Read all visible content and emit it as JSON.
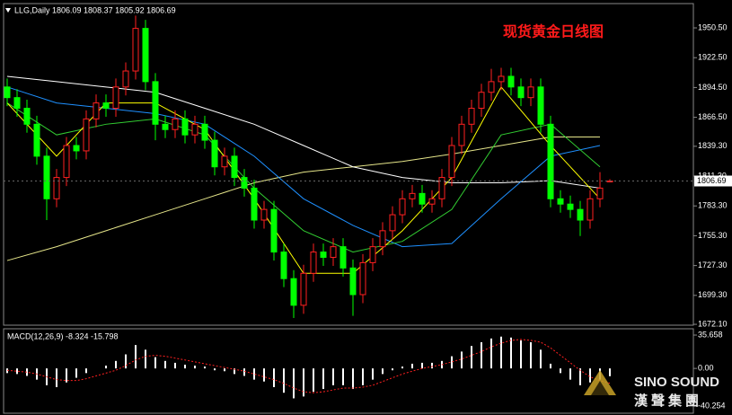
{
  "chart_data": [
    {
      "type": "candlestick",
      "subtitle": "LLG,Daily  1806.09 1808.37 1805.92 1806.69",
      "title": "现货黄金日线图",
      "up_color": "#ff2020",
      "down_color": "#00ff00",
      "open": [
        1895,
        1885,
        1875,
        1860,
        1830,
        1790,
        1810,
        1840,
        1835,
        1865,
        1880,
        1875,
        1895,
        1910,
        1950,
        1900,
        1860,
        1855,
        1865,
        1850,
        1860,
        1845,
        1820,
        1830,
        1810,
        1800,
        1770,
        1780,
        1740,
        1715,
        1690,
        1720,
        1740,
        1735,
        1745,
        1725,
        1700,
        1730,
        1745,
        1760,
        1775,
        1790,
        1795,
        1785,
        1790,
        1810,
        1840,
        1860,
        1875,
        1890,
        1900,
        1905,
        1895,
        1885,
        1895,
        1860,
        1790,
        1785,
        1780,
        1770,
        1790,
        1806.09
      ],
      "high": [
        1903,
        1893,
        1883,
        1868,
        1838,
        1818,
        1848,
        1848,
        1873,
        1888,
        1888,
        1903,
        1918,
        1962,
        1958,
        1908,
        1868,
        1873,
        1873,
        1868,
        1868,
        1853,
        1838,
        1838,
        1818,
        1808,
        1788,
        1788,
        1748,
        1723,
        1728,
        1748,
        1748,
        1753,
        1753,
        1733,
        1738,
        1753,
        1768,
        1783,
        1798,
        1803,
        1803,
        1798,
        1818,
        1848,
        1868,
        1883,
        1898,
        1912,
        1913,
        1913,
        1903,
        1903,
        1903,
        1868,
        1798,
        1793,
        1788,
        1798,
        1815,
        1808.37
      ],
      "low": [
        1877,
        1867,
        1852,
        1822,
        1770,
        1782,
        1802,
        1827,
        1827,
        1857,
        1867,
        1867,
        1887,
        1902,
        1892,
        1845,
        1847,
        1847,
        1842,
        1842,
        1837,
        1812,
        1812,
        1802,
        1792,
        1762,
        1762,
        1732,
        1707,
        1678,
        1682,
        1712,
        1727,
        1727,
        1717,
        1680,
        1692,
        1722,
        1737,
        1752,
        1767,
        1782,
        1777,
        1777,
        1782,
        1802,
        1832,
        1852,
        1867,
        1882,
        1892,
        1887,
        1877,
        1877,
        1852,
        1782,
        1777,
        1772,
        1755,
        1762,
        1782,
        1805.92
      ],
      "close": [
        1885,
        1875,
        1860,
        1830,
        1790,
        1810,
        1840,
        1835,
        1865,
        1880,
        1875,
        1895,
        1910,
        1950,
        1900,
        1860,
        1855,
        1865,
        1850,
        1860,
        1845,
        1820,
        1830,
        1810,
        1800,
        1770,
        1780,
        1740,
        1715,
        1690,
        1720,
        1740,
        1735,
        1745,
        1725,
        1700,
        1730,
        1745,
        1760,
        1775,
        1790,
        1795,
        1785,
        1790,
        1810,
        1840,
        1860,
        1875,
        1890,
        1900,
        1905,
        1895,
        1885,
        1895,
        1860,
        1790,
        1785,
        1780,
        1770,
        1790,
        1800,
        1806.69
      ],
      "ma_x": [
        0,
        5,
        10,
        15,
        20,
        25,
        30,
        35,
        40,
        45,
        50,
        55,
        60
      ],
      "moving_averages": [
        {
          "color": "#e6e68a",
          "values": [
            1732,
            1745,
            1760,
            1775,
            1790,
            1805,
            1815,
            1820,
            1825,
            1832,
            1840,
            1848,
            1848
          ]
        },
        {
          "color": "#ffffff",
          "values": [
            1905,
            1900,
            1895,
            1890,
            1875,
            1860,
            1840,
            1820,
            1810,
            1805,
            1805,
            1807,
            1800
          ]
        },
        {
          "color": "#1e90ff",
          "values": [
            1895,
            1880,
            1875,
            1870,
            1860,
            1830,
            1790,
            1765,
            1745,
            1748,
            1790,
            1830,
            1840
          ]
        },
        {
          "color": "#32cd32",
          "values": [
            1880,
            1850,
            1860,
            1865,
            1850,
            1800,
            1760,
            1740,
            1750,
            1780,
            1850,
            1860,
            1820
          ]
        },
        {
          "color": "#ffff00",
          "values": [
            1880,
            1830,
            1880,
            1880,
            1855,
            1790,
            1720,
            1720,
            1760,
            1810,
            1895,
            1840,
            1790
          ]
        }
      ],
      "current_price": 1806.69,
      "ylim": [
        1671.3,
        1973.3
      ],
      "yticks": [
        {
          "value": 1950.5,
          "label": "1950.50"
        },
        {
          "value": 1922.5,
          "label": "1922.50"
        },
        {
          "value": 1894.5,
          "label": "1894.50"
        },
        {
          "value": 1866.5,
          "label": "1866.50"
        },
        {
          "value": 1839.3,
          "label": "1839.30"
        },
        {
          "value": 1811.3,
          "label": "1811.30"
        },
        {
          "value": 1783.3,
          "label": "1783.30"
        },
        {
          "value": 1755.3,
          "label": "1755.30"
        },
        {
          "value": 1727.3,
          "label": "1727.30"
        },
        {
          "value": 1699.3,
          "label": "1699.30"
        },
        {
          "value": 1672.1,
          "label": "1672.10"
        }
      ]
    },
    {
      "type": "macd",
      "title": "MACD(12,26,9) -8.324 -15.798",
      "series": [
        {
          "color": "#ffffff",
          "values": [
            -5,
            -6,
            -8,
            -12,
            -18,
            -20,
            -15,
            -10,
            -5,
            0,
            3,
            8,
            15,
            25,
            20,
            12,
            8,
            6,
            4,
            3,
            2,
            -2,
            -3,
            -6,
            -8,
            -12,
            -14,
            -20,
            -26,
            -32,
            -30,
            -25,
            -22,
            -18,
            -18,
            -22,
            -18,
            -12,
            -6,
            -2,
            2,
            5,
            6,
            6,
            8,
            13,
            18,
            24,
            28,
            32,
            34,
            33,
            30,
            28,
            20,
            5,
            -5,
            -12,
            -18,
            -15,
            -12,
            -8.324
          ]
        },
        {
          "color": "#ff2020",
          "values": [
            -2,
            -3,
            -4,
            -6,
            -9,
            -12,
            -13,
            -13,
            -11,
            -8,
            -5,
            -2,
            3,
            9,
            13,
            14,
            13,
            11,
            9,
            7,
            5,
            3,
            1,
            -1,
            -3,
            -6,
            -9,
            -12,
            -16,
            -21,
            -25,
            -26,
            -25,
            -23,
            -21,
            -21,
            -20,
            -18,
            -14,
            -10,
            -6,
            -3,
            0,
            2,
            4,
            7,
            10,
            14,
            18,
            23,
            27,
            30,
            31,
            30,
            28,
            22,
            14,
            6,
            -2,
            -9,
            -13,
            -15.798
          ]
        }
      ],
      "ylim": [
        -47.9,
        42.4
      ],
      "yticks": [
        35.658,
        {
          "value": 0,
          "label": "0.00"
        },
        -40.254
      ]
    }
  ],
  "watermark": {
    "brand": "SINO SOUND",
    "chinese": "漢聲集團"
  }
}
